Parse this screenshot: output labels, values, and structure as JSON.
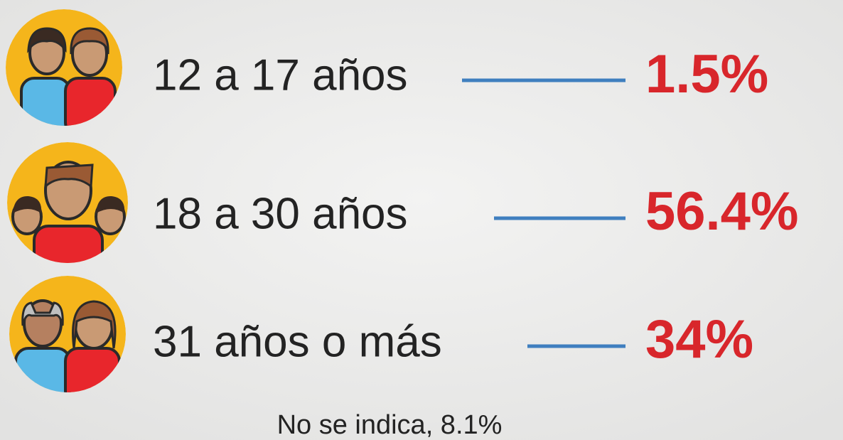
{
  "rows": [
    {
      "label": "12 a 17 años",
      "value": "1.5%"
    },
    {
      "label": "18 a 30 años",
      "value": "56.4%"
    },
    {
      "label": "31 años o más",
      "value": "34%"
    }
  ],
  "footnote": "No se indica, 8.1%"
}
